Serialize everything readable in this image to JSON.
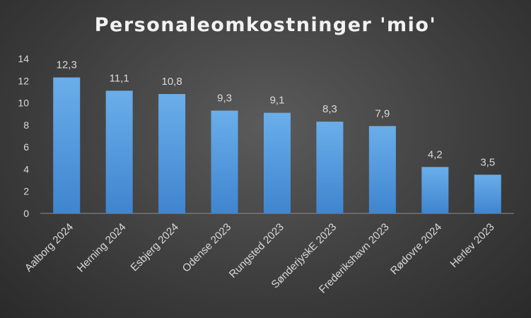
{
  "chart_data": {
    "type": "bar",
    "title": "Personaleomkostninger 'mio'",
    "xlabel": "",
    "ylabel": "",
    "categories": [
      "Aalborg 2024",
      "Herning 2024",
      "Esbjerg 2024",
      "Odense 2023",
      "Rungsted 2023",
      "SønderjyskE 2023",
      "Frederikshavn 2023",
      "Rødovre 2024",
      "Herlev 2023"
    ],
    "values": [
      12.3,
      11.1,
      10.8,
      9.3,
      9.1,
      8.3,
      7.9,
      4.2,
      3.5
    ],
    "data_labels": [
      "12,3",
      "11,1",
      "10,8",
      "9,3",
      "9,1",
      "8,3",
      "7,9",
      "4,2",
      "3,5"
    ],
    "ylim": [
      0,
      14
    ],
    "yticks": [
      0,
      2,
      4,
      6,
      8,
      10,
      12,
      14
    ],
    "grid": false,
    "legend": "none",
    "colors": {
      "bar_top": "#6aaeea",
      "bar_bottom": "#3f85cf",
      "axis": "#8c8c8c",
      "text": "#d9d9d9",
      "background": "#404040"
    }
  }
}
